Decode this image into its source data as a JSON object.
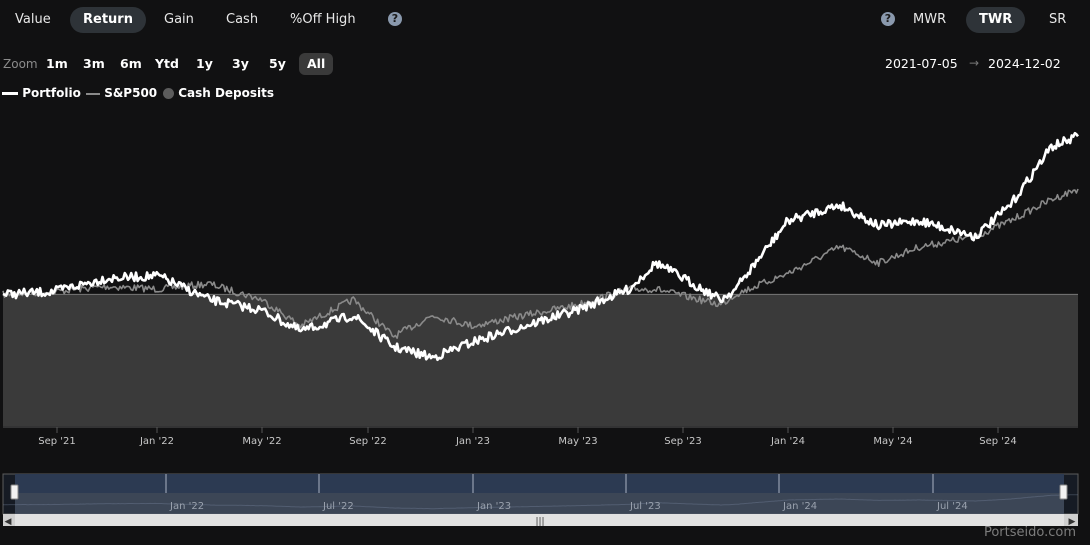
{
  "tabs": {
    "value": "Value",
    "return": "Return",
    "gain": "Gain",
    "cash": "Cash",
    "off_high": "%Off High",
    "help": "?"
  },
  "methods": {
    "help": "?",
    "mwr": "MWR",
    "twr": "TWR",
    "sr": "SR"
  },
  "zoom": {
    "label": "Zoom",
    "options": [
      "1m",
      "3m",
      "6m",
      "Ytd",
      "1y",
      "3y",
      "5y",
      "All"
    ],
    "active": "All"
  },
  "range": {
    "from": "2021-07-05",
    "arrow": "→",
    "to": "2024-12-02"
  },
  "legend": {
    "portfolio": "Portfolio",
    "sp500": "S&P500",
    "cash": "Cash Deposits"
  },
  "colors": {
    "background": "#111112",
    "portfolio": "#ffffff",
    "sp500": "#8a8a8a",
    "cash_area": "#3a3a3a",
    "navigator_fill": "#2c3a52"
  },
  "chart_data": {
    "type": "line",
    "x_axis_labels": [
      "Sep '21",
      "Jan '22",
      "May '22",
      "Sep '22",
      "Jan '23",
      "May '23",
      "Sep '23",
      "Jan '24",
      "May '24",
      "Sep '24"
    ],
    "x_range": [
      "2021-07-05",
      "2024-12-02"
    ],
    "series": [
      {
        "name": "Portfolio",
        "x": [
          "2021-07-05",
          "2021-09-01",
          "2021-11-01",
          "2022-01-01",
          "2022-03-01",
          "2022-05-01",
          "2022-06-15",
          "2022-08-15",
          "2022-10-01",
          "2022-11-15",
          "2023-01-01",
          "2023-03-01",
          "2023-05-01",
          "2023-07-01",
          "2023-08-01",
          "2023-10-15",
          "2023-11-01",
          "2024-01-01",
          "2024-03-01",
          "2024-04-15",
          "2024-06-01",
          "2024-08-05",
          "2024-09-15",
          "2024-11-01",
          "2024-12-02"
        ],
        "values": [
          0,
          0.5,
          3,
          3.5,
          -1,
          -3,
          -7,
          -4,
          -10,
          -12,
          -9,
          -6,
          -3,
          1,
          6,
          -1,
          1,
          14,
          17,
          13,
          14,
          11,
          17,
          28,
          30
        ]
      },
      {
        "name": "S&P500",
        "x": [
          "2021-07-05",
          "2021-09-01",
          "2021-11-01",
          "2022-01-01",
          "2022-03-01",
          "2022-05-01",
          "2022-06-15",
          "2022-08-15",
          "2022-10-01",
          "2022-11-15",
          "2023-01-01",
          "2023-03-01",
          "2023-05-01",
          "2023-07-01",
          "2023-08-01",
          "2023-10-15",
          "2023-11-01",
          "2024-01-01",
          "2024-03-01",
          "2024-04-15",
          "2024-06-01",
          "2024-08-05",
          "2024-09-15",
          "2024-11-01",
          "2024-12-02"
        ],
        "values": [
          0,
          0.5,
          1.5,
          1,
          2,
          -1,
          -6,
          -1,
          -8,
          -4,
          -6,
          -4,
          -2,
          1,
          1,
          -2,
          0,
          4,
          9,
          6,
          9,
          11,
          14,
          18,
          20
        ]
      },
      {
        "name": "Cash Deposits",
        "x": [
          "2021-07-05",
          "2024-12-02"
        ],
        "values": [
          0,
          0
        ]
      }
    ],
    "ylim": [
      -25,
      35
    ],
    "grid": false,
    "legend_position": "top-left",
    "navigator_labels": [
      "Jan '22",
      "Jul '22",
      "Jan '23",
      "Jul '23",
      "Jan '24",
      "Jul '24"
    ]
  },
  "watermark": "Portseido.com"
}
